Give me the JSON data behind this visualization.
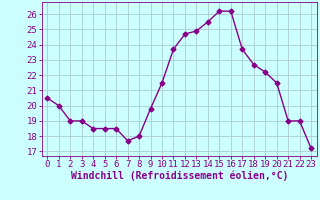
{
  "hours": [
    0,
    1,
    2,
    3,
    4,
    5,
    6,
    7,
    8,
    9,
    10,
    11,
    12,
    13,
    14,
    15,
    16,
    17,
    18,
    19,
    20,
    21,
    22,
    23
  ],
  "values": [
    20.5,
    20.0,
    19.0,
    19.0,
    18.5,
    18.5,
    18.5,
    17.7,
    18.0,
    19.8,
    21.5,
    23.7,
    24.7,
    24.9,
    25.5,
    26.2,
    26.2,
    23.7,
    22.7,
    22.2,
    21.5,
    19.0,
    19.0,
    17.2
  ],
  "line_color": "#880088",
  "marker": "D",
  "marker_size": 2.5,
  "bg_color": "#ccffff",
  "grid_color": "#aacccc",
  "xlabel": "Windchill (Refroidissement éolien,°C)",
  "xlabel_fontsize": 7,
  "ytick_min": 17,
  "ytick_max": 26,
  "xlim": [
    -0.5,
    23.5
  ],
  "ylim": [
    16.7,
    26.8
  ],
  "tick_fontsize": 6.5,
  "line_width": 1.0
}
